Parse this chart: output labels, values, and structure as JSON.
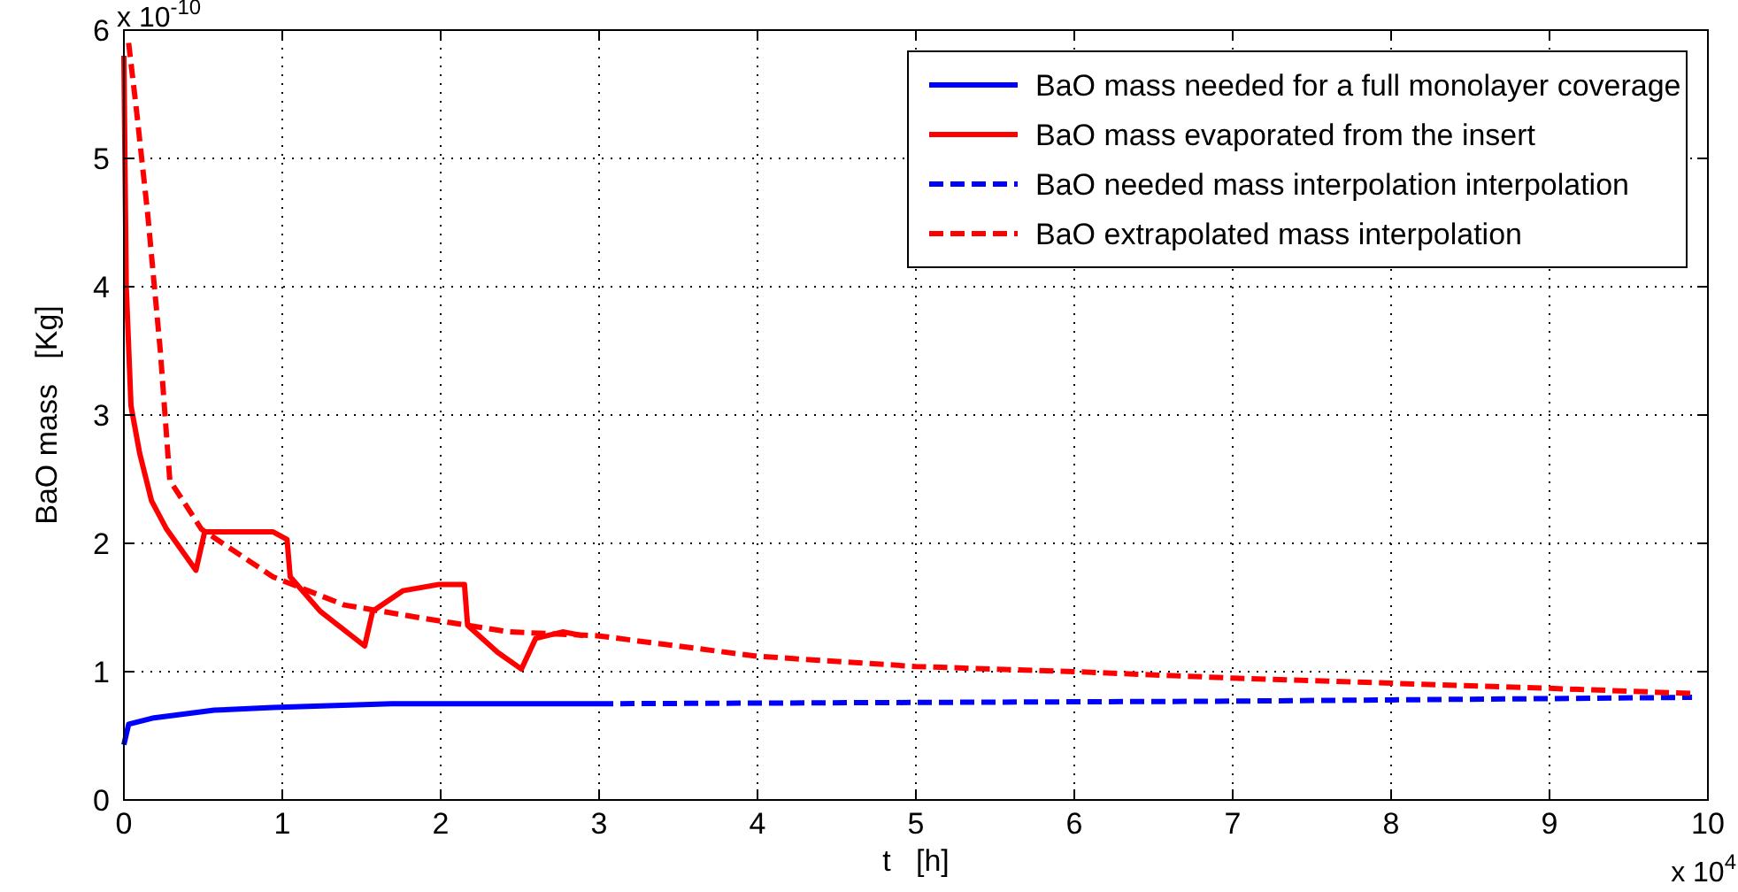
{
  "chart_data": {
    "type": "line",
    "xlabel": "t   [h]",
    "ylabel": "BaO mass   [Kg]",
    "annotations": [
      "x 10$^{-10}$",
      "x 10$^{4}$"
    ],
    "xlim": [
      0,
      10
    ],
    "xticks": [
      0,
      1,
      2,
      3,
      4,
      5,
      6,
      7,
      8,
      9,
      10
    ],
    "ylim": [
      0,
      6
    ],
    "yticks": [
      0,
      1,
      2,
      3,
      4,
      5,
      6
    ],
    "grid": true,
    "legend": "top right",
    "series": [
      {
        "name": "BaO mass needed for a full monolayer coverage",
        "color": "#0000ff",
        "line_style": "solid",
        "x": [
          0,
          0.03,
          0.19,
          0.57,
          0.94,
          1.69,
          3
        ],
        "values": [
          0.43,
          0.59,
          0.64,
          0.7,
          0.72,
          0.75,
          0.75
        ]
      },
      {
        "name": "BaO mass evaporated from the insert",
        "color": "#ff0000",
        "line_style": "solid",
        "x": [
          0,
          0.015,
          0.045,
          0.1,
          0.175,
          0.27,
          0.455,
          0.51,
          0.6,
          0.94,
          1.03,
          1.05,
          1.24,
          1.52,
          1.57,
          1.76,
          1.99,
          2.15,
          2.17,
          2.36,
          2.51,
          2.6,
          2.77,
          2.9
        ],
        "values": [
          5.8,
          4.0,
          3.07,
          2.7,
          2.33,
          2.11,
          1.79,
          2.09,
          2.09,
          2.09,
          2.03,
          1.74,
          1.47,
          1.2,
          1.47,
          1.63,
          1.68,
          1.68,
          1.36,
          1.15,
          1.02,
          1.26,
          1.31,
          1.28
        ]
      },
      {
        "name": "BaO needed mass interpolation interpolation",
        "color": "#0000ff",
        "line_style": "dashed",
        "x": [
          3,
          5,
          7,
          8,
          9,
          9.9
        ],
        "values": [
          0.75,
          0.76,
          0.77,
          0.78,
          0.79,
          0.8
        ]
      },
      {
        "name": "BaO extrapolated mass interpolation",
        "color": "#ff0000",
        "line_style": "dashed",
        "x": [
          0.03,
          0.08,
          0.15,
          0.23,
          0.29,
          0.49,
          0.94,
          1.39,
          1.87,
          2.43,
          2.99,
          4,
          5,
          6,
          7,
          8,
          9,
          9.9
        ],
        "values": [
          5.9,
          5.37,
          4.57,
          3.5,
          2.49,
          2.11,
          1.74,
          1.52,
          1.42,
          1.31,
          1.28,
          1.12,
          1.04,
          1.0,
          0.95,
          0.91,
          0.87,
          0.83
        ]
      }
    ]
  }
}
